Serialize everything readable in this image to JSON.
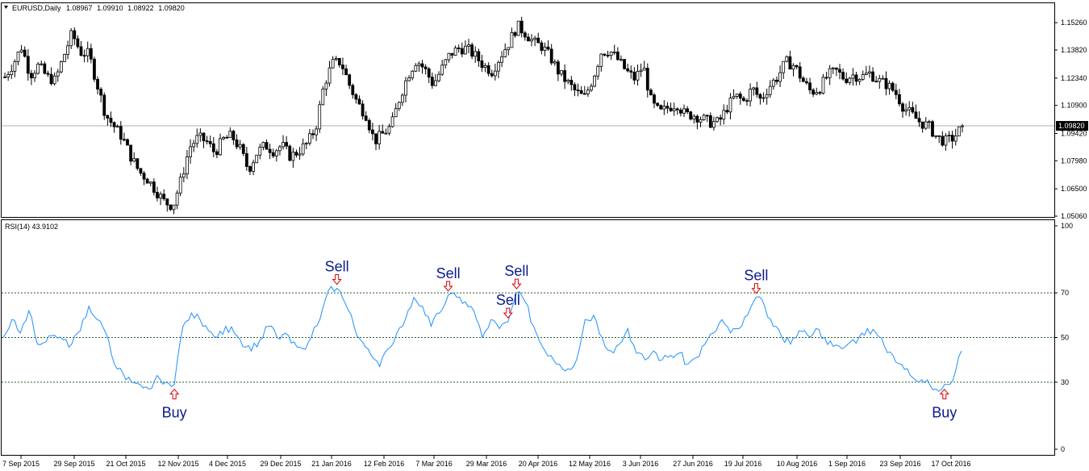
{
  "chart_data": [
    {
      "type": "candlestick",
      "title": "EURUSD,Daily",
      "ohlc_readout": [
        "1.08967",
        "1.09910",
        "1.08922",
        "1.09820"
      ],
      "current_price_label": "1.09820",
      "current_price": 1.0982,
      "ylim": [
        1.0506,
        1.162
      ],
      "y_ticks": [
        "1.15260",
        "1.13820",
        "1.12340",
        "1.10900",
        "1.09420",
        "1.07980",
        "1.06500",
        "1.05060"
      ],
      "y_tick_values": [
        1.1526,
        1.1382,
        1.1234,
        1.109,
        1.0942,
        1.0798,
        1.065,
        1.0506
      ],
      "price_path": [
        1.124,
        1.131,
        1.14,
        1.125,
        1.13,
        1.124,
        1.122,
        1.135,
        1.147,
        1.137,
        1.136,
        1.12,
        1.104,
        1.098,
        1.092,
        1.082,
        1.074,
        1.07,
        1.064,
        1.058,
        1.056,
        1.07,
        1.087,
        1.092,
        1.09,
        1.084,
        1.091,
        1.093,
        1.086,
        1.075,
        1.084,
        1.088,
        1.085,
        1.088,
        1.082,
        1.085,
        1.089,
        1.097,
        1.12,
        1.131,
        1.132,
        1.12,
        1.11,
        1.104,
        1.09,
        1.094,
        1.098,
        1.113,
        1.125,
        1.133,
        1.128,
        1.12,
        1.128,
        1.136,
        1.139,
        1.139,
        1.135,
        1.13,
        1.127,
        1.135,
        1.142,
        1.151,
        1.147,
        1.142,
        1.14,
        1.134,
        1.126,
        1.121,
        1.116,
        1.113,
        1.123,
        1.137,
        1.138,
        1.133,
        1.127,
        1.123,
        1.13,
        1.11,
        1.105,
        1.108,
        1.11,
        1.104,
        1.104,
        1.102,
        1.1,
        1.1,
        1.108,
        1.114,
        1.111,
        1.118,
        1.112,
        1.119,
        1.124,
        1.132,
        1.13,
        1.122,
        1.116,
        1.118,
        1.125,
        1.127,
        1.123,
        1.125,
        1.124,
        1.126,
        1.122,
        1.12,
        1.116,
        1.108,
        1.104,
        1.1,
        1.098,
        1.092,
        1.09,
        1.092,
        1.098
      ]
    },
    {
      "type": "line",
      "title": "RSI(14) 43.9102",
      "ylim": [
        0,
        100
      ],
      "y_ticks": [
        "100",
        "70",
        "50",
        "30",
        "0"
      ],
      "y_tick_values": [
        100,
        70,
        50,
        30,
        0
      ],
      "levels": [
        70,
        50,
        30
      ],
      "x": [
        "7 Sep 2015",
        "29 Sep 2015",
        "21 Oct 2015",
        "12 Nov 2015",
        "4 Dec 2015",
        "29 Dec 2015",
        "21 Jan 2016",
        "12 Feb 2016",
        "7 Mar 2016",
        "29 Mar 2016",
        "20 Apr 2016",
        "12 May 2016",
        "3 Jun 2016",
        "27 Jun 2016",
        "19 Jul 2016",
        "10 Aug 2016",
        "1 Sep 2016",
        "23 Sep 2016",
        "17 Oct 2016"
      ],
      "rsi_path": [
        50,
        58,
        52,
        62,
        47,
        48,
        51,
        49,
        47,
        53,
        64,
        58,
        52,
        38,
        34,
        30,
        29,
        27,
        33,
        30,
        29,
        55,
        61,
        58,
        53,
        50,
        55,
        52,
        46,
        44,
        49,
        55,
        50,
        52,
        48,
        45,
        50,
        58,
        71,
        72,
        65,
        55,
        48,
        42,
        37,
        45,
        52,
        58,
        68,
        64,
        55,
        61,
        69,
        68,
        66,
        62,
        50,
        58,
        54,
        57,
        70,
        66,
        55,
        46,
        42,
        38,
        36,
        40,
        58,
        60,
        50,
        44,
        47,
        54,
        43,
        40,
        44,
        40,
        42,
        43,
        38,
        41,
        47,
        52,
        58,
        52,
        54,
        60,
        68,
        64,
        55,
        50,
        47,
        53,
        51,
        54,
        50,
        46,
        45,
        48,
        50,
        54,
        52,
        46,
        42,
        38,
        33,
        30,
        31,
        27,
        29,
        31,
        44
      ],
      "signals": [
        {
          "label": "Sell",
          "index": 39
        },
        {
          "label": "Sell",
          "index": 52
        },
        {
          "label": "Sell",
          "index": 59
        },
        {
          "label": "Sell",
          "index": 60
        },
        {
          "label": "Sell",
          "index": 88
        },
        {
          "label": "Buy",
          "index": 20
        },
        {
          "label": "Buy",
          "index": 110
        }
      ]
    }
  ]
}
